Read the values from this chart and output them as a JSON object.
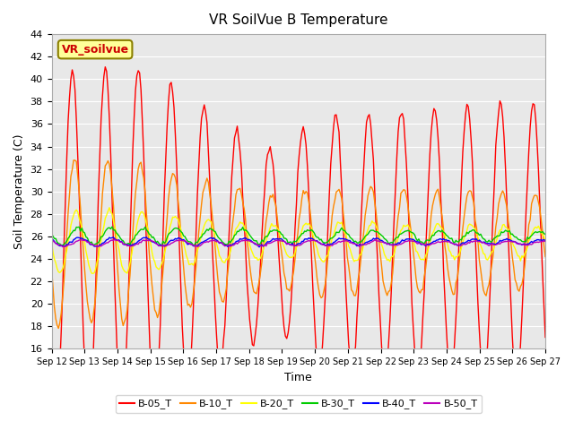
{
  "title": "VR SoilVue B Temperature",
  "xlabel": "Time",
  "ylabel": "Soil Temperature (C)",
  "ylim": [
    16,
    44
  ],
  "yticks": [
    16,
    18,
    20,
    22,
    24,
    26,
    28,
    30,
    32,
    34,
    36,
    38,
    40,
    42,
    44
  ],
  "bg_color": "#e8e8e8",
  "fig_color": "#ffffff",
  "legend_label": "VR_soilvue",
  "legend_box_color": "#ffff99",
  "legend_box_edge": "#8B8000",
  "series": [
    {
      "name": "B-05_T",
      "color": "#ff0000"
    },
    {
      "name": "B-10_T",
      "color": "#ff8800"
    },
    {
      "name": "B-20_T",
      "color": "#ffff00"
    },
    {
      "name": "B-30_T",
      "color": "#00cc00"
    },
    {
      "name": "B-40_T",
      "color": "#0000ff"
    },
    {
      "name": "B-50_T",
      "color": "#bb00bb"
    }
  ],
  "x_tick_labels": [
    "Sep 12",
    "Sep 13",
    "Sep 14",
    "Sep 15",
    "Sep 16",
    "Sep 17",
    "Sep 18",
    "Sep 19",
    "Sep 20",
    "Sep 21",
    "Sep 22",
    "Sep 23",
    "Sep 24",
    "Sep 25",
    "Sep 26",
    "Sep 27"
  ],
  "n_days": 15,
  "points_per_day": 24
}
